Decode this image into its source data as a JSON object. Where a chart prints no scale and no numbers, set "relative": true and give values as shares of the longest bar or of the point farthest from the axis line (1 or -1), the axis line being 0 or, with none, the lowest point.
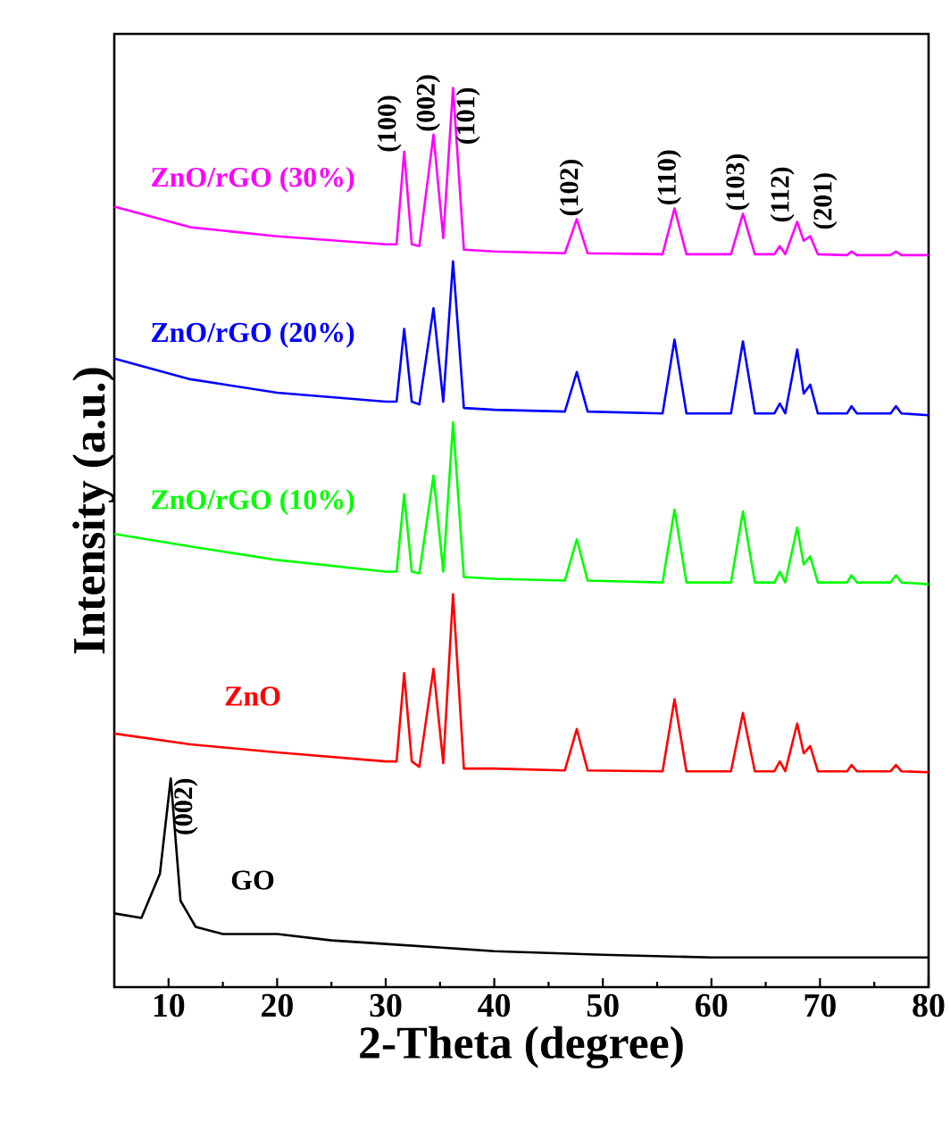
{
  "chart_data": {
    "type": "line",
    "relative": true,
    "xlabel": "2-Theta (degree)",
    "ylabel": "Intensity (a.u.)",
    "xlim": [
      5,
      80
    ],
    "xticks": [
      10,
      {
        "value": 15,
        "label": null
      },
      20,
      {
        "value": 25,
        "label": null
      },
      30,
      {
        "value": 35,
        "label": null
      },
      40,
      {
        "value": 45,
        "label": null
      },
      50,
      {
        "value": 55,
        "label": null
      },
      60,
      {
        "value": 65,
        "label": null
      },
      70,
      {
        "value": 75,
        "label": null
      },
      80
    ],
    "x": [
      5,
      12,
      20,
      30,
      31.0,
      31.7,
      32.4,
      33.1,
      34.4,
      35.3,
      36.2,
      37.2,
      40,
      46.5,
      47.6,
      48.6,
      55.5,
      56.6,
      57.7,
      61.8,
      62.9,
      64,
      65.8,
      66.3,
      66.8,
      67.9,
      68.5,
      69.1,
      69.8,
      72.5,
      72.9,
      73.4,
      76.5,
      77,
      77.5,
      80
    ],
    "series": [
      {
        "name": "ZnO/rGO (30%)",
        "color": "#ff00ff",
        "values": [
          0.868,
          0.845,
          0.835,
          0.826,
          0.826,
          0.929,
          0.826,
          0.824,
          0.948,
          0.833,
          1.0,
          0.82,
          0.818,
          0.816,
          0.854,
          0.816,
          0.815,
          0.866,
          0.815,
          0.815,
          0.86,
          0.815,
          0.815,
          0.824,
          0.815,
          0.851,
          0.83,
          0.835,
          0.815,
          0.814,
          0.818,
          0.814,
          0.814,
          0.818,
          0.814,
          0.814
        ]
      },
      {
        "name": "ZnO/rGO (20%)",
        "color": "#0000ff",
        "values": [
          0.699,
          0.676,
          0.661,
          0.651,
          0.651,
          0.732,
          0.651,
          0.648,
          0.755,
          0.651,
          0.807,
          0.644,
          0.642,
          0.64,
          0.684,
          0.64,
          0.638,
          0.72,
          0.638,
          0.638,
          0.718,
          0.638,
          0.638,
          0.649,
          0.638,
          0.709,
          0.66,
          0.67,
          0.638,
          0.638,
          0.646,
          0.638,
          0.638,
          0.646,
          0.638,
          0.636
        ]
      },
      {
        "name": "ZnO/rGO (10%)",
        "color": "#00ff00",
        "values": [
          0.504,
          0.49,
          0.475,
          0.462,
          0.462,
          0.548,
          0.462,
          0.46,
          0.569,
          0.462,
          0.628,
          0.456,
          0.454,
          0.452,
          0.498,
          0.452,
          0.45,
          0.531,
          0.45,
          0.45,
          0.529,
          0.45,
          0.45,
          0.462,
          0.45,
          0.511,
          0.47,
          0.479,
          0.45,
          0.45,
          0.458,
          0.45,
          0.45,
          0.458,
          0.45,
          0.448
        ]
      },
      {
        "name": "ZnO",
        "color": "#ff0000",
        "values": [
          0.282,
          0.27,
          0.261,
          0.251,
          0.251,
          0.349,
          0.251,
          0.245,
          0.354,
          0.249,
          0.437,
          0.243,
          0.243,
          0.241,
          0.287,
          0.241,
          0.24,
          0.32,
          0.24,
          0.24,
          0.305,
          0.24,
          0.24,
          0.251,
          0.24,
          0.293,
          0.26,
          0.268,
          0.24,
          0.24,
          0.247,
          0.24,
          0.24,
          0.247,
          0.24,
          0.239
        ]
      },
      {
        "name": "GO",
        "color": "#000000",
        "x": [
          5,
          7.5,
          9.2,
          10.2,
          11.1,
          12.5,
          15,
          20,
          25,
          30,
          40,
          50,
          60,
          70,
          80
        ],
        "values": [
          0.082,
          0.077,
          0.126,
          0.232,
          0.096,
          0.067,
          0.059,
          0.059,
          0.052,
          0.048,
          0.04,
          0.036,
          0.033,
          0.033,
          0.033
        ]
      }
    ],
    "annotations": [
      {
        "text": "(100)",
        "x": 31.7,
        "y": 0.929
      },
      {
        "text": "(002)",
        "x": 34.4,
        "y": 0.948
      },
      {
        "text": "(101)",
        "x": 36.2,
        "y": 1.0
      },
      {
        "text": "(102)",
        "x": 47.6,
        "y": 0.854
      },
      {
        "text": "(110)",
        "x": 56.6,
        "y": 0.866
      },
      {
        "text": "(103)",
        "x": 62.9,
        "y": 0.86
      },
      {
        "text": "(112)",
        "x": 67.9,
        "y": 0.851
      },
      {
        "text": "(201)",
        "x": 69.1,
        "y": 0.835
      },
      {
        "text": "(002)",
        "x": 10.2,
        "y": 0.232
      }
    ]
  }
}
